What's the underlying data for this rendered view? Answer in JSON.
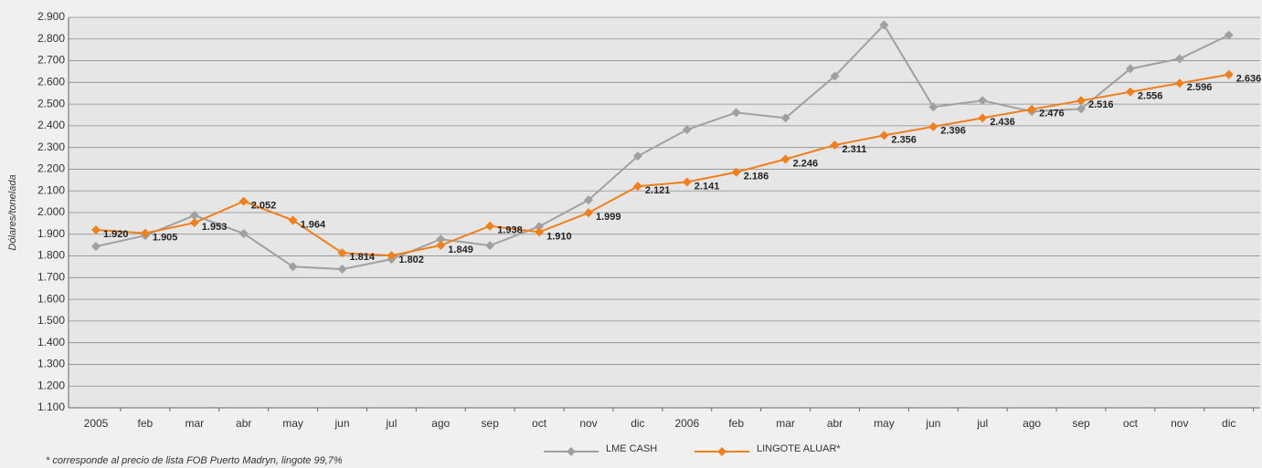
{
  "chart_data": {
    "type": "line",
    "y_label": "Dólares/tonelada",
    "footnote": "* corresponde al precio de lista FOB Puerto Madryn, lingote 99,7%",
    "categories": [
      "2005",
      "feb",
      "mar",
      "abr",
      "may",
      "jun",
      "jul",
      "ago",
      "sep",
      "oct",
      "nov",
      "dic",
      "2006",
      "feb",
      "mar",
      "abr",
      "may",
      "jun",
      "jul",
      "ago",
      "sep",
      "oct",
      "nov",
      "dic"
    ],
    "series": [
      {
        "name": "LME CASH",
        "color": "#a0a0a0",
        "values": [
          1844,
          1894,
          1987,
          1903,
          1751,
          1739,
          1785,
          1877,
          1848,
          1936,
          2058,
          2260,
          2382,
          2461,
          2436,
          2629,
          2865,
          2487,
          2516,
          2466,
          2478,
          2663,
          2709,
          2818
        ]
      },
      {
        "name": "LINGOTE ALUAR*",
        "color": "#f07f1e",
        "values": [
          1920,
          1905,
          1953,
          2052,
          1964,
          1814,
          1802,
          1849,
          1938,
          1910,
          1999,
          2121,
          2141,
          2186,
          2246,
          2311,
          2356,
          2396,
          2436,
          2476,
          2516,
          2556,
          2596,
          2636
        ],
        "value_labels": [
          "1.920",
          "1.905",
          "1.953",
          "2.052",
          "1.964",
          "1.814",
          "1.802",
          "1.849",
          "1.938",
          "1.910",
          "1.999",
          "2.121",
          "2.141",
          "2.186",
          "2.246",
          "2.311",
          "2.356",
          "2.396",
          "2.436",
          "2.476",
          "2.516",
          "2.556",
          "2.596",
          "2.636"
        ]
      }
    ],
    "ylim": [
      1100,
      2900
    ],
    "yticks": [
      {
        "value": 1100,
        "label": "1.100"
      },
      {
        "value": 1200,
        "label": "1.200"
      },
      {
        "value": 1300,
        "label": "1.300"
      },
      {
        "value": 1400,
        "label": "1.400"
      },
      {
        "value": 1500,
        "label": "1.500"
      },
      {
        "value": 1600,
        "label": "1.600"
      },
      {
        "value": 1700,
        "label": "1.700"
      },
      {
        "value": 1800,
        "label": "1.800"
      },
      {
        "value": 1900,
        "label": "1.900"
      },
      {
        "value": 2000,
        "label": "2.000"
      },
      {
        "value": 2100,
        "label": "2.100"
      },
      {
        "value": 2200,
        "label": "2.200"
      },
      {
        "value": 2300,
        "label": "2.300"
      },
      {
        "value": 2400,
        "label": "2.400"
      },
      {
        "value": 2500,
        "label": "2.500"
      },
      {
        "value": 2600,
        "label": "2.600"
      },
      {
        "value": 2700,
        "label": "2.700"
      },
      {
        "value": 2800,
        "label": "2.800"
      },
      {
        "value": 2900,
        "label": "2.900"
      }
    ],
    "grid": true
  }
}
